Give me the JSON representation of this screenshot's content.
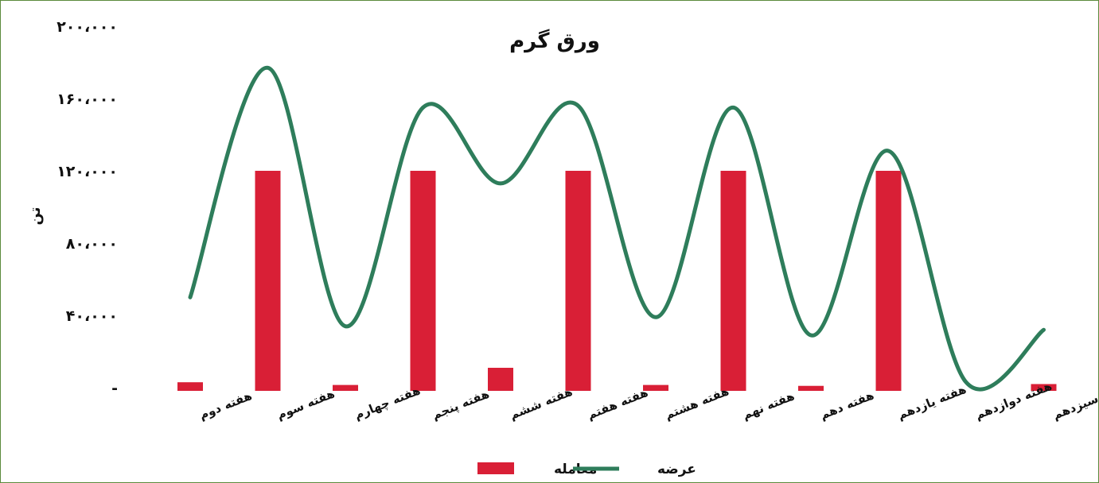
{
  "chart_data": {
    "type": "bar",
    "title": "ورق گرم",
    "ylabel": "تن",
    "xlabel": "",
    "ylim": [
      0,
      200000
    ],
    "y_ticks": [
      "-",
      "۴۰،۰۰۰",
      "۸۰،۰۰۰",
      "۱۲۰،۰۰۰",
      "۱۶۰،۰۰۰",
      "۲۰۰،۰۰۰"
    ],
    "categories": [
      "هفته دوم",
      "هفته سوم",
      "هفته چهارم",
      "هفته پنجم",
      "هفته ششم",
      "هفته هفتم",
      "هفته هشتم",
      "هفته نهم",
      "هفته دهم",
      "هفته یازدهم",
      "هفته دوازدهم",
      "هفته سیزدهم"
    ],
    "series": [
      {
        "name": "معامله",
        "type": "bar",
        "color": "#d91f36",
        "values": [
          3000,
          120000,
          1500,
          120000,
          11000,
          120000,
          1500,
          120000,
          1000,
          120000,
          0,
          2000
        ]
      },
      {
        "name": "عرضه",
        "type": "line",
        "color": "#2e7d5b",
        "values": [
          50000,
          177000,
          34000,
          155000,
          113000,
          156000,
          39000,
          155000,
          29000,
          131000,
          3000,
          32000
        ]
      }
    ],
    "legend": "bottom",
    "grid": false
  }
}
